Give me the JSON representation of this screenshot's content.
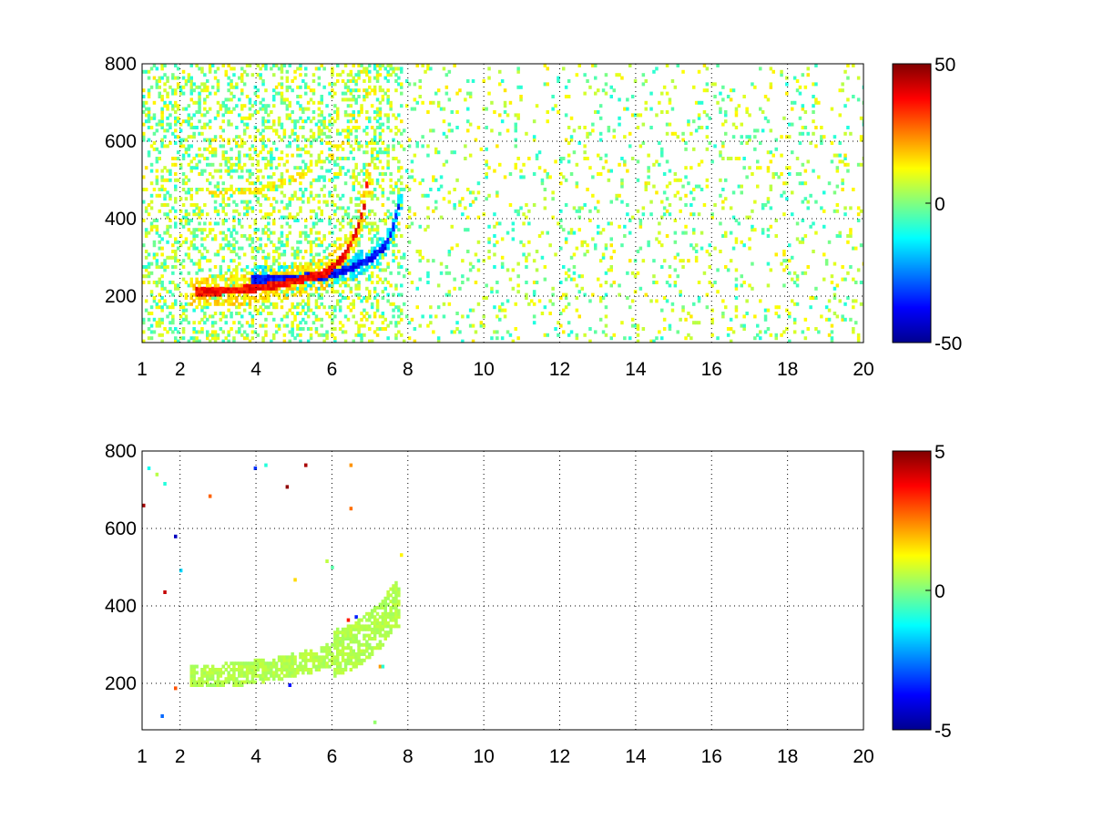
{
  "chart_data": [
    {
      "type": "heatmap",
      "title": "",
      "xlabel": "",
      "ylabel": "",
      "xlim": [
        1,
        20
      ],
      "ylim": [
        80,
        800
      ],
      "xticks": [
        1,
        2,
        4,
        6,
        8,
        10,
        12,
        14,
        16,
        18,
        20
      ],
      "yticks": [
        200,
        400,
        600,
        800
      ],
      "grid": true,
      "colormap": "jet",
      "color_limits": [
        -50,
        50
      ],
      "colorbar_ticks": [
        -50,
        0,
        50
      ],
      "features": {
        "ridge_positive": [
          [
            2.7,
            208
          ],
          [
            3.5,
            212
          ],
          [
            4.5,
            225
          ],
          [
            5.8,
            255
          ],
          [
            6.3,
            300
          ],
          [
            6.6,
            360
          ],
          [
            6.8,
            420
          ],
          [
            6.9,
            500
          ]
        ],
        "ridge_negative": [
          [
            4.0,
            240
          ],
          [
            5.0,
            245
          ],
          [
            5.8,
            248
          ],
          [
            6.5,
            270
          ],
          [
            7.0,
            295
          ],
          [
            7.4,
            330
          ],
          [
            7.6,
            380
          ],
          [
            7.7,
            430
          ]
        ],
        "upper_branch": [
          [
            2.8,
            460
          ],
          [
            4.0,
            470
          ],
          [
            5.0,
            500
          ],
          [
            6.0,
            560
          ],
          [
            6.6,
            640
          ],
          [
            6.9,
            720
          ]
        ]
      }
    },
    {
      "type": "heatmap",
      "title": "",
      "xlabel": "",
      "ylabel": "",
      "xlim": [
        1,
        20
      ],
      "ylim": [
        80,
        800
      ],
      "xticks": [
        1,
        2,
        4,
        6,
        8,
        10,
        12,
        14,
        16,
        18,
        20
      ],
      "yticks": [
        200,
        400,
        600,
        800
      ],
      "grid": true,
      "colormap": "jet",
      "color_limits": [
        -5,
        5
      ],
      "colorbar_ticks": [
        -5,
        0,
        5
      ],
      "features": {
        "band_center": [
          [
            2.5,
            215
          ],
          [
            3.5,
            220
          ],
          [
            4.5,
            235
          ],
          [
            5.5,
            255
          ],
          [
            6.5,
            290
          ],
          [
            7.2,
            340
          ],
          [
            7.6,
            400
          ]
        ]
      }
    }
  ]
}
